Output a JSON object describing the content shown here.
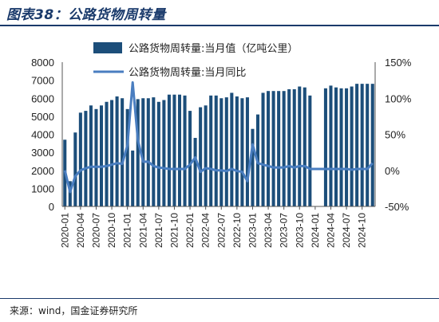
{
  "figure": {
    "title": "图表38：公路货物周转量",
    "source": "来源：wind，国金证券研究所"
  },
  "colors": {
    "bar": "#1c4e7a",
    "line": "#4a7ec0",
    "title": "#1a3a6b"
  },
  "chart_data": {
    "type": "bar",
    "title": "",
    "xlabel": "",
    "ylabel": "",
    "y2label": "",
    "ylim": [
      0,
      8000
    ],
    "y2lim": [
      -50,
      150
    ],
    "yticks": [
      0,
      1000,
      2000,
      3000,
      4000,
      5000,
      6000,
      7000,
      8000
    ],
    "y2ticks": [
      "-50%",
      "0%",
      "50%",
      "100%",
      "150%"
    ],
    "y2tick_values": [
      -50,
      0,
      50,
      100,
      150
    ],
    "legend_position": "top-right",
    "grid": false,
    "x_tick_labels": [
      "2020-01",
      "2020-04",
      "2020-07",
      "2020-10",
      "2021-01",
      "2021-04",
      "2021-07",
      "2021-10",
      "2022-01",
      "2022-04",
      "2022-07",
      "2022-10",
      "2023-01",
      "2023-04",
      "2023-07",
      "2023-10",
      "2024-01",
      "2024-04",
      "2024-07",
      "2024-10"
    ],
    "categories": [
      "2020-01",
      "2020-02",
      "2020-03",
      "2020-04",
      "2020-05",
      "2020-06",
      "2020-07",
      "2020-08",
      "2020-09",
      "2020-10",
      "2020-11",
      "2020-12",
      "2021-01",
      "2021-02",
      "2021-03",
      "2021-04",
      "2021-05",
      "2021-06",
      "2021-07",
      "2021-08",
      "2021-09",
      "2021-10",
      "2021-11",
      "2021-12",
      "2022-01",
      "2022-02",
      "2022-03",
      "2022-04",
      "2022-05",
      "2022-06",
      "2022-07",
      "2022-08",
      "2022-09",
      "2022-10",
      "2022-11",
      "2022-12",
      "2023-01",
      "2023-02",
      "2023-03",
      "2023-04",
      "2023-05",
      "2023-06",
      "2023-07",
      "2023-08",
      "2023-09",
      "2023-10",
      "2023-11",
      "2023-12",
      "2024-01",
      "2024-02",
      "2024-03",
      "2024-04",
      "2024-05",
      "2024-06",
      "2024-07",
      "2024-08",
      "2024-09",
      "2024-10",
      "2024-11",
      "2024-12"
    ],
    "series": [
      {
        "name": "公路货物周转量:当月值（亿吨公里）",
        "kind": "bar",
        "axis": "left",
        "values": [
          3700,
          1400,
          4100,
          5200,
          5300,
          5600,
          5400,
          5600,
          5800,
          5900,
          6100,
          6000,
          5400,
          3100,
          5950,
          6000,
          6000,
          6050,
          5800,
          5900,
          6200,
          6200,
          6200,
          6150,
          5300,
          3800,
          5500,
          5600,
          6150,
          6150,
          6000,
          6050,
          6300,
          6100,
          6000,
          6050,
          4300,
          5100,
          6300,
          6400,
          6400,
          6400,
          6400,
          6500,
          6500,
          6650,
          6600,
          6150,
          null,
          null,
          6550,
          6700,
          6600,
          6550,
          6550,
          6650,
          6800,
          6800,
          6800,
          6800
        ]
      },
      {
        "name": "公路货物周转量:当月同比",
        "kind": "line",
        "axis": "right",
        "values": [
          0,
          -30,
          -8,
          0,
          3,
          5,
          5,
          5,
          6,
          8,
          10,
          9,
          35,
          122,
          42,
          12,
          12,
          6,
          4,
          3,
          2,
          2,
          2,
          2,
          8,
          18,
          -2,
          3,
          2,
          0,
          0,
          -1,
          2,
          -1,
          -2,
          -15,
          36,
          10,
          8,
          6,
          4,
          4,
          4,
          6,
          4,
          6,
          6,
          2,
          2,
          2,
          2,
          2,
          2,
          2,
          2,
          1,
          2,
          2,
          2,
          10
        ]
      }
    ]
  }
}
